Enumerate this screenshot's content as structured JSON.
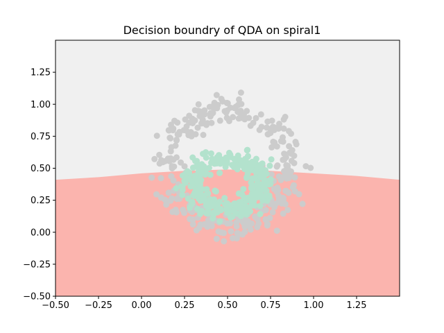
{
  "chart_data": {
    "type": "scatter",
    "title": "Decision boundry of QDA on spiral1",
    "xlabel": "",
    "ylabel": "",
    "xlim": [
      -0.5,
      1.5
    ],
    "ylim": [
      -0.5,
      1.5
    ],
    "xticks": [
      -0.5,
      -0.25,
      0.0,
      0.25,
      0.5,
      0.75,
      1.0,
      1.25
    ],
    "xtick_labels": [
      "−0.50",
      "−0.25",
      "0.00",
      "0.25",
      "0.50",
      "0.75",
      "1.00",
      "1.25"
    ],
    "yticks": [
      -0.5,
      -0.25,
      0.0,
      0.25,
      0.5,
      0.75,
      1.0,
      1.25
    ],
    "ytick_labels": [
      "−0.50",
      "−0.25",
      "0.00",
      "0.25",
      "0.50",
      "0.75",
      "1.00",
      "1.25"
    ],
    "grid": false,
    "regions": [
      {
        "class": "upper",
        "color": "#f0f0f0"
      },
      {
        "class": "lower",
        "color": "#fbb4ae"
      }
    ],
    "boundary": [
      [
        -0.5,
        0.41
      ],
      [
        -0.25,
        0.43
      ],
      [
        0.0,
        0.46
      ],
      [
        0.25,
        0.48
      ],
      [
        0.5,
        0.49
      ],
      [
        0.75,
        0.48
      ],
      [
        1.0,
        0.46
      ],
      [
        1.25,
        0.44
      ],
      [
        1.5,
        0.41
      ]
    ],
    "series": [
      {
        "class": "outer_ring",
        "color": "#cccccc",
        "center": [
          0.5,
          0.5
        ],
        "radius": 0.36,
        "radius_ratio_y": 1.25,
        "noise": 0.045,
        "count": 320
      },
      {
        "class": "inner_ring",
        "color": "#b3e2cd",
        "center": [
          0.5,
          0.37
        ],
        "radius": 0.2,
        "radius_ratio_y": 1.0,
        "noise": 0.04,
        "count": 320
      }
    ]
  }
}
